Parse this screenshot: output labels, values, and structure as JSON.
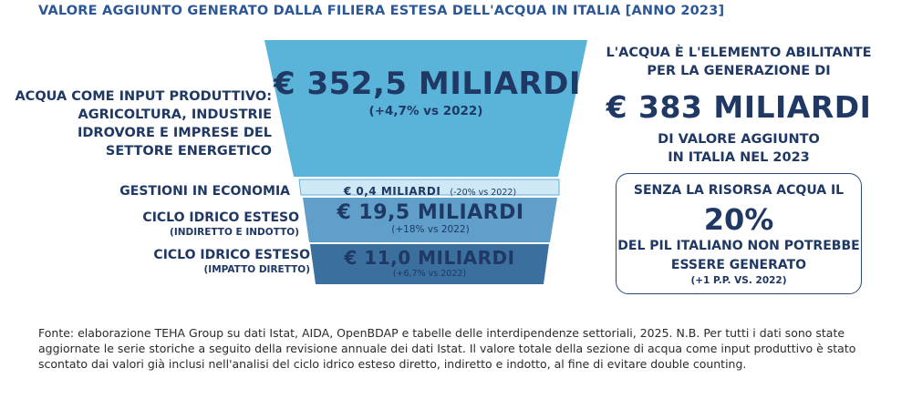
{
  "title": "VALORE AGGIUNTO GENERATO DALLA FILIERA ESTESA DELL'ACQUA IN ITALIA [ANNO 2023]",
  "colors": {
    "title": "#2b5797",
    "text": "#1f3864",
    "segment_water": "#5ab3d8",
    "segment_gestioni": "#cfe8f5",
    "segment_indiretto": "#5f9fc9",
    "segment_diretto": "#3a6f9e"
  },
  "funnel": {
    "water": {
      "label_lines": [
        "ACQUA COME INPUT PRODUTTIVO:",
        "AGRICOLTURA, INDUSTRIE",
        "IDROVORE E IMPRESE DEL",
        "SETTORE ENERGETICO"
      ],
      "value": "€ 352,5 MILIARDI",
      "change": "(+4,7% vs 2022)"
    },
    "gestioni": {
      "label": "GESTIONI IN ECONOMIA",
      "value": "€ 0,4 MILIARDI",
      "change": "(-20% vs 2022)"
    },
    "indiretto": {
      "label": "CICLO IDRICO ESTESO",
      "sublabel": "(INDIRETTO E INDOTTO)",
      "value": "€ 19,5 MILIARDI",
      "change": "(+18% vs 2022)"
    },
    "diretto": {
      "label": "CICLO IDRICO ESTESO",
      "sublabel": "(IMPATTO DIRETTO)",
      "value": "€ 11,0 MILIARDI",
      "change": "(+6,7% vs 2022)"
    }
  },
  "summary": {
    "line1": "L'ACQUA È L'ELEMENTO ABILITANTE",
    "line2": "PER LA GENERAZIONE DI",
    "big_value": "€ 383 MILIARDI",
    "line3": "DI VALORE AGGIUNTO",
    "line4": "IN ITALIA NEL 2023"
  },
  "box": {
    "line1": "SENZA LA RISORSA ACQUA IL",
    "percent": "20%",
    "line2": "DEL PIL ITALIANO NON POTREBBE",
    "line3": "ESSERE GENERATO",
    "note": "(+1 P.P. VS. 2022)"
  },
  "footnote": "Fonte: elaborazione TEHA Group su dati Istat, AIDA, OpenBDAP e tabelle delle interdipendenze settoriali, 2025. N.B. Per tutti i dati sono state aggiornate le serie storiche a seguito della revisione annuale dei dati Istat. Il valore totale della sezione di acqua come input produttivo è stato scontato dai valori già inclusi nell'analisi del ciclo idrico esteso diretto, indiretto e indotto, al fine di evitare double counting."
}
